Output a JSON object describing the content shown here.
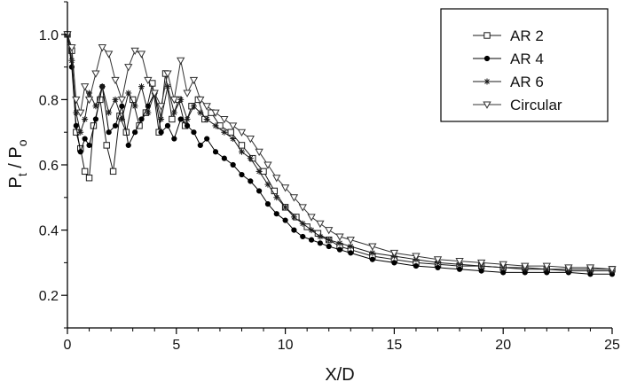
{
  "chart_data": {
    "type": "line",
    "title": "",
    "xlabel": "X/D",
    "ylabel": "P_t / P_o",
    "ylabel_parts": {
      "p1": "P",
      "sub1": "t",
      "slash": " / ",
      "p2": "P",
      "sub2": "o"
    },
    "xlim": [
      0,
      25
    ],
    "ylim": [
      0.1,
      1.1
    ],
    "xticks": [
      0,
      5,
      10,
      15,
      20,
      25
    ],
    "yticks": [
      0.2,
      0.4,
      0.6,
      0.8,
      1.0
    ],
    "xtick_labels": [
      "0",
      "5",
      "10",
      "15",
      "20",
      "25"
    ],
    "ytick_labels": [
      "0.2",
      "0.4",
      "0.6",
      "0.8",
      "1.0"
    ],
    "grid": false,
    "legend_position": "top-right",
    "series": [
      {
        "name": "AR 2",
        "marker": "square-open",
        "color": "#1a1a1a",
        "x": [
          0,
          0.2,
          0.4,
          0.6,
          0.8,
          1.0,
          1.2,
          1.5,
          1.8,
          2.1,
          2.4,
          2.7,
          3.0,
          3.3,
          3.6,
          3.9,
          4.2,
          4.5,
          4.8,
          5.1,
          5.4,
          5.7,
          6.0,
          6.3,
          6.6,
          7.0,
          7.5,
          8.0,
          8.5,
          9.0,
          9.5,
          10.0,
          10.5,
          11.0,
          11.5,
          12.0,
          12.5,
          13.0,
          14.0,
          15.0,
          16.0,
          17.0,
          18.0,
          19.0,
          20.0,
          21.0,
          22.0,
          23.0,
          24.0,
          25.0
        ],
        "y": [
          1.0,
          0.95,
          0.7,
          0.65,
          0.58,
          0.56,
          0.72,
          0.8,
          0.66,
          0.58,
          0.75,
          0.7,
          0.8,
          0.72,
          0.76,
          0.85,
          0.7,
          0.88,
          0.74,
          0.8,
          0.72,
          0.78,
          0.8,
          0.74,
          0.76,
          0.72,
          0.7,
          0.66,
          0.62,
          0.58,
          0.52,
          0.47,
          0.44,
          0.41,
          0.39,
          0.37,
          0.35,
          0.34,
          0.32,
          0.31,
          0.3,
          0.295,
          0.29,
          0.29,
          0.285,
          0.285,
          0.28,
          0.28,
          0.28,
          0.28
        ]
      },
      {
        "name": "AR 4",
        "marker": "circle-filled",
        "color": "#000000",
        "x": [
          0,
          0.2,
          0.4,
          0.6,
          0.8,
          1.0,
          1.3,
          1.6,
          1.9,
          2.2,
          2.5,
          2.8,
          3.1,
          3.4,
          3.7,
          4.0,
          4.3,
          4.6,
          4.9,
          5.2,
          5.5,
          5.8,
          6.1,
          6.4,
          6.8,
          7.2,
          7.6,
          8.0,
          8.4,
          8.8,
          9.2,
          9.6,
          10.0,
          10.4,
          10.8,
          11.2,
          11.6,
          12.0,
          12.5,
          13.0,
          14.0,
          15.0,
          16.0,
          17.0,
          18.0,
          19.0,
          20.0,
          21.0,
          22.0,
          23.0,
          24.0,
          25.0
        ],
        "y": [
          1.0,
          0.9,
          0.72,
          0.64,
          0.68,
          0.66,
          0.74,
          0.84,
          0.7,
          0.72,
          0.78,
          0.66,
          0.7,
          0.74,
          0.78,
          0.82,
          0.7,
          0.72,
          0.68,
          0.74,
          0.72,
          0.7,
          0.66,
          0.68,
          0.64,
          0.62,
          0.6,
          0.57,
          0.55,
          0.52,
          0.48,
          0.45,
          0.43,
          0.4,
          0.38,
          0.37,
          0.36,
          0.35,
          0.34,
          0.33,
          0.31,
          0.3,
          0.29,
          0.285,
          0.28,
          0.275,
          0.27,
          0.27,
          0.27,
          0.27,
          0.265,
          0.265
        ]
      },
      {
        "name": "AR 6",
        "marker": "star",
        "color": "#1a1a1a",
        "x": [
          0,
          0.2,
          0.4,
          0.6,
          0.8,
          1.0,
          1.3,
          1.6,
          1.9,
          2.2,
          2.5,
          2.8,
          3.1,
          3.4,
          3.7,
          4.0,
          4.3,
          4.6,
          4.9,
          5.2,
          5.5,
          5.8,
          6.1,
          6.4,
          6.8,
          7.2,
          7.6,
          8.0,
          8.4,
          8.8,
          9.2,
          9.6,
          10.0,
          10.4,
          10.8,
          11.2,
          11.6,
          12.0,
          12.5,
          13.0,
          14.0,
          15.0,
          16.0,
          17.0,
          18.0,
          19.0,
          20.0,
          21.0,
          22.0,
          23.0,
          24.0,
          25.0
        ],
        "y": [
          1.0,
          0.92,
          0.76,
          0.7,
          0.74,
          0.82,
          0.78,
          0.84,
          0.76,
          0.8,
          0.74,
          0.82,
          0.78,
          0.84,
          0.76,
          0.82,
          0.74,
          0.84,
          0.76,
          0.8,
          0.74,
          0.78,
          0.76,
          0.74,
          0.72,
          0.7,
          0.68,
          0.64,
          0.62,
          0.58,
          0.54,
          0.5,
          0.47,
          0.44,
          0.42,
          0.4,
          0.38,
          0.37,
          0.36,
          0.35,
          0.33,
          0.32,
          0.31,
          0.3,
          0.295,
          0.29,
          0.285,
          0.28,
          0.28,
          0.275,
          0.275,
          0.275
        ]
      },
      {
        "name": "Circular",
        "marker": "triangle-down-open",
        "color": "#333333",
        "x": [
          0,
          0.2,
          0.4,
          0.6,
          0.8,
          1.0,
          1.3,
          1.6,
          1.9,
          2.2,
          2.5,
          2.8,
          3.1,
          3.4,
          3.7,
          4.0,
          4.3,
          4.6,
          4.9,
          5.2,
          5.5,
          5.8,
          6.1,
          6.4,
          6.8,
          7.2,
          7.6,
          8.0,
          8.4,
          8.8,
          9.2,
          9.6,
          10.0,
          10.4,
          10.8,
          11.2,
          11.6,
          12.0,
          12.5,
          13.0,
          14.0,
          15.0,
          16.0,
          17.0,
          18.0,
          19.0,
          20.0,
          21.0,
          22.0,
          23.0,
          24.0,
          25.0
        ],
        "y": [
          1.0,
          0.96,
          0.8,
          0.76,
          0.84,
          0.8,
          0.88,
          0.96,
          0.94,
          0.86,
          0.8,
          0.9,
          0.95,
          0.94,
          0.86,
          0.82,
          0.78,
          0.88,
          0.8,
          0.92,
          0.82,
          0.86,
          0.8,
          0.78,
          0.76,
          0.74,
          0.72,
          0.7,
          0.68,
          0.64,
          0.6,
          0.56,
          0.53,
          0.5,
          0.47,
          0.44,
          0.42,
          0.4,
          0.38,
          0.37,
          0.35,
          0.33,
          0.32,
          0.31,
          0.305,
          0.3,
          0.295,
          0.29,
          0.29,
          0.285,
          0.285,
          0.28
        ]
      }
    ]
  }
}
